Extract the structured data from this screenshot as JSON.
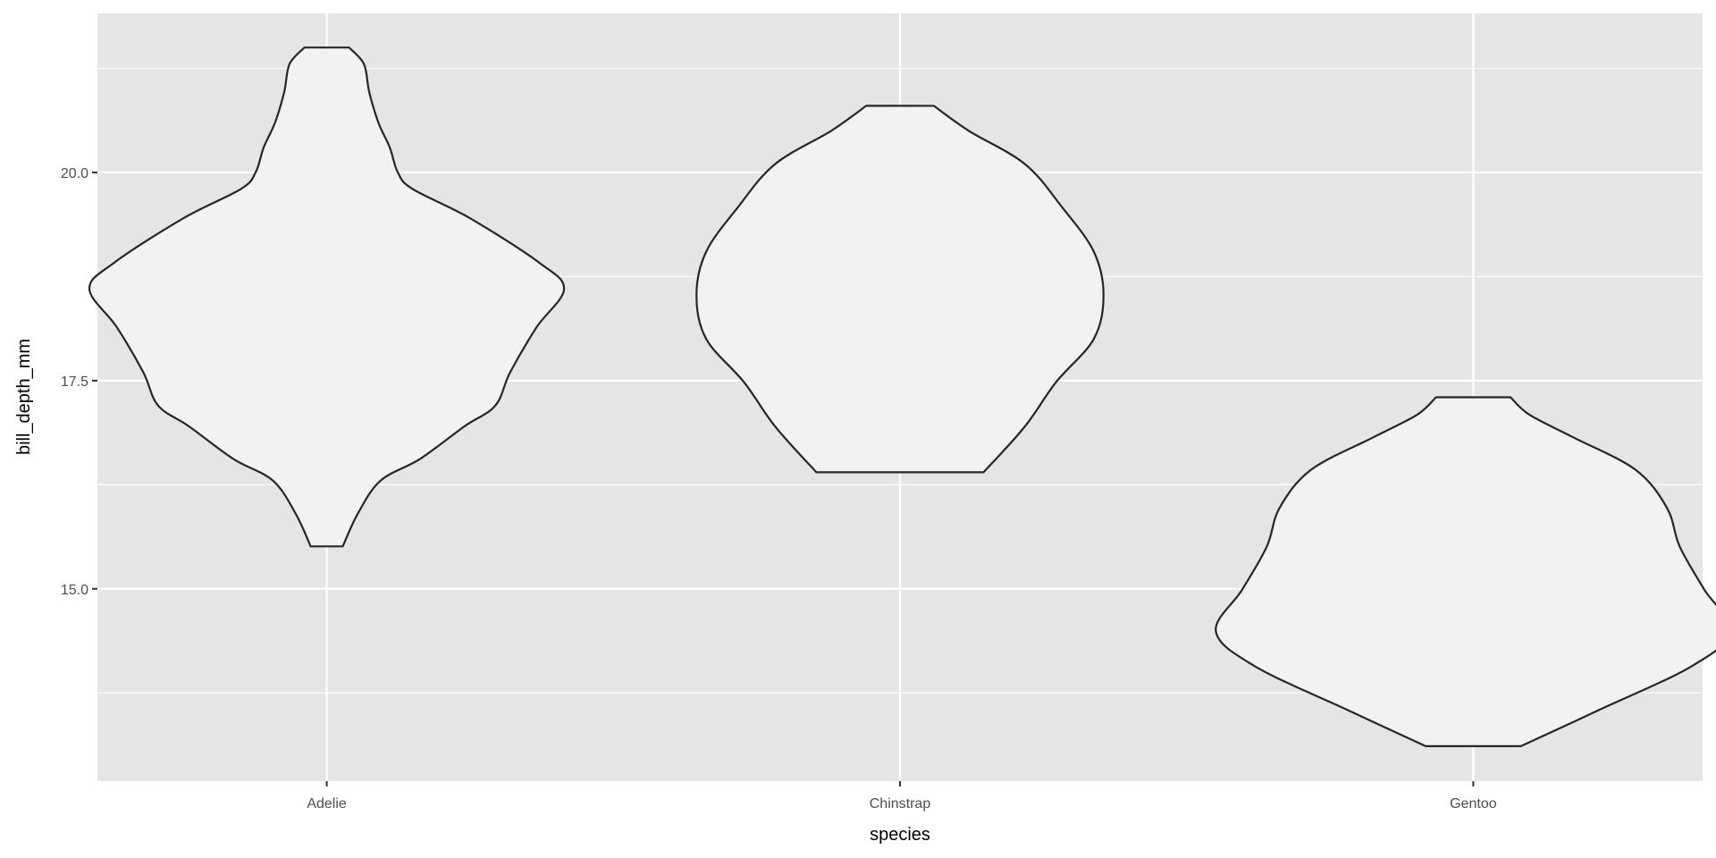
{
  "chart_data": {
    "type": "violin",
    "xlabel": "species",
    "ylabel": "bill_depth_mm",
    "categories": [
      "Adelie",
      "Chinstrap",
      "Gentoo"
    ],
    "ylim": [
      12.69,
      21.91
    ],
    "yticks": [
      15.0,
      17.5,
      20.0
    ],
    "ytick_labels": [
      "15.0",
      "17.5",
      "20.0"
    ],
    "yminor": [
      13.75,
      16.25,
      18.75,
      21.25
    ],
    "grid": true,
    "colors": {
      "panel": "#e5e5e5",
      "grid": "#ffffff",
      "fill": "#f2f2f2",
      "outline": "#262626",
      "text": "#4d4d4d"
    },
    "series": [
      {
        "category": "Adelie",
        "profile": [
          [
            21.5,
            0.039
          ],
          [
            21.3,
            0.065
          ],
          [
            20.97,
            0.074
          ],
          [
            20.6,
            0.09
          ],
          [
            20.3,
            0.11
          ],
          [
            20.0,
            0.124
          ],
          [
            19.8,
            0.15
          ],
          [
            19.45,
            0.25
          ],
          [
            18.92,
            0.37
          ],
          [
            18.6,
            0.414
          ],
          [
            18.14,
            0.366
          ],
          [
            17.6,
            0.32
          ],
          [
            17.2,
            0.294
          ],
          [
            16.95,
            0.24
          ],
          [
            16.56,
            0.163
          ],
          [
            16.3,
            0.094
          ],
          [
            15.9,
            0.054
          ],
          [
            15.51,
            0.028
          ]
        ]
      },
      {
        "category": "Chinstrap",
        "profile": [
          [
            20.8,
            0.059
          ],
          [
            20.5,
            0.12
          ],
          [
            20.1,
            0.218
          ],
          [
            19.58,
            0.283
          ],
          [
            19.05,
            0.338
          ],
          [
            18.53,
            0.355
          ],
          [
            18.0,
            0.338
          ],
          [
            17.48,
            0.272
          ],
          [
            16.95,
            0.218
          ],
          [
            16.4,
            0.146
          ]
        ]
      },
      {
        "category": "Gentoo",
        "profile": [
          [
            17.3,
            0.065
          ],
          [
            17.09,
            0.098
          ],
          [
            16.82,
            0.174
          ],
          [
            16.43,
            0.283
          ],
          [
            15.97,
            0.338
          ],
          [
            15.51,
            0.36
          ],
          [
            14.99,
            0.403
          ],
          [
            14.49,
            0.449
          ],
          [
            14.07,
            0.381
          ],
          [
            13.54,
            0.218
          ],
          [
            13.11,
            0.083
          ]
        ]
      }
    ]
  }
}
